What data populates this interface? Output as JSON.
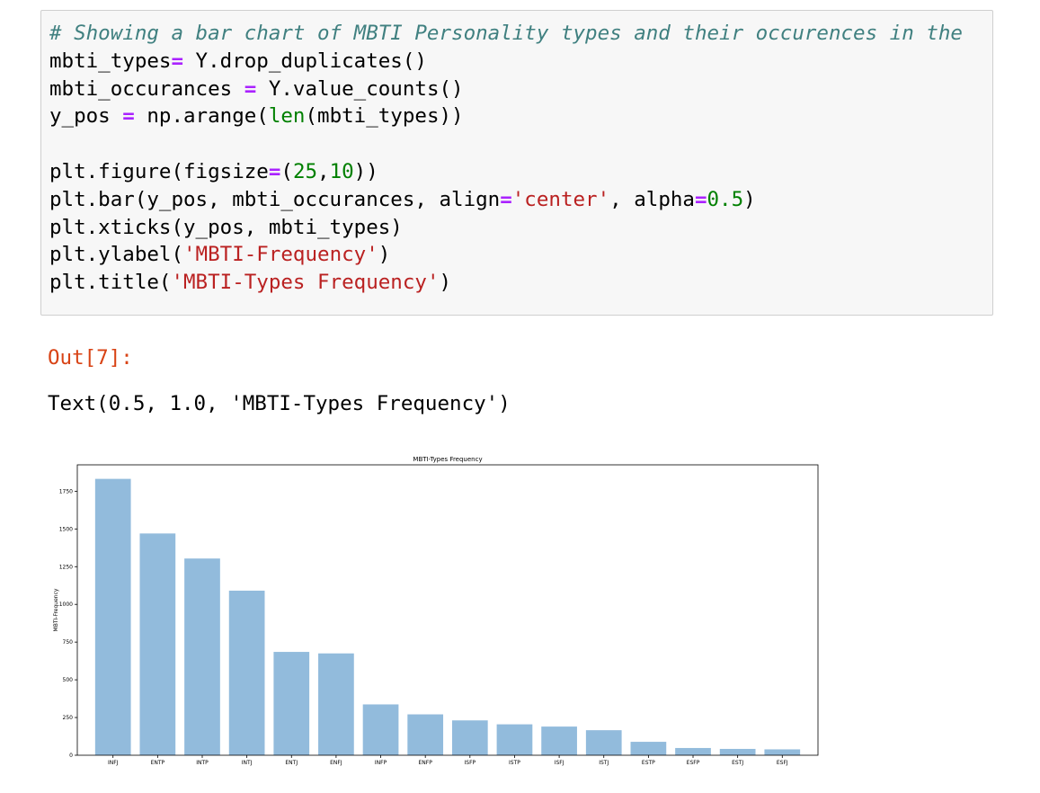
{
  "input_cell": {
    "lines": [
      "# Showing a bar chart of MBTI Personality types and their occurences in the",
      "mbti_types= Y.drop_duplicates()",
      "mbti_occurances = Y.value_counts()",
      "y_pos = np.arange(len(mbti_types))",
      "",
      "plt.figure(figsize=(25,10))",
      "plt.bar(y_pos, mbti_occurances, align='center', alpha=0.5)",
      "plt.xticks(y_pos, mbti_types)",
      "plt.ylabel('MBTI-Frequency')",
      "plt.title('MBTI-Types Frequency')"
    ]
  },
  "output_cell": {
    "prompt": "Out[7]:",
    "text": "Text(0.5, 1.0, 'MBTI-Types Frequency')"
  },
  "colors": {
    "bar": "#92bbdc",
    "comment": "#408080",
    "operator": "#aa22ff",
    "number": "#008000",
    "string": "#ba2121",
    "out_prompt": "#d84315"
  },
  "chart_data": {
    "type": "bar",
    "title": "MBTI-Types Frequency",
    "xlabel": "",
    "ylabel": "MBTI-Frequency",
    "categories": [
      "INFJ",
      "ENTP",
      "INTP",
      "INTJ",
      "ENTJ",
      "ENFJ",
      "INFP",
      "ENFP",
      "ISFP",
      "ISTP",
      "ISFJ",
      "ISTJ",
      "ESTP",
      "ESFP",
      "ESTJ",
      "ESFJ"
    ],
    "values": [
      1832,
      1470,
      1304,
      1091,
      685,
      675,
      337,
      271,
      231,
      205,
      190,
      166,
      89,
      48,
      42,
      39
    ],
    "ylim": [
      0,
      1925
    ],
    "yticks": [
      0,
      250,
      500,
      750,
      1000,
      1250,
      1500,
      1750
    ],
    "grid": false,
    "legend": "none"
  }
}
